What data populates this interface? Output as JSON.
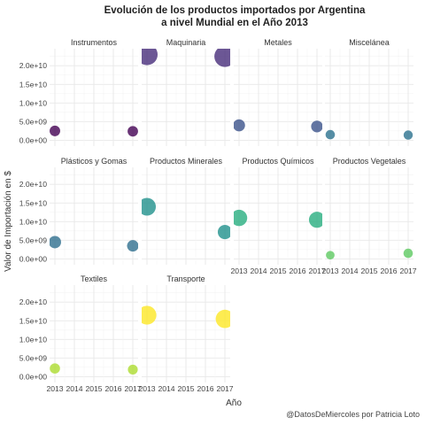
{
  "chart_data": {
    "type": "scatter",
    "title_lines": [
      "Evolución de los productos importados por Argentina",
      "a nivel Mundial en el Año 2013"
    ],
    "xlabel": "Año",
    "ylabel": "Valor de Importación en $",
    "caption": "@DatosDeMiercoles por Patricia Loto",
    "x_ticks": [
      2013,
      2014,
      2015,
      2016,
      2017
    ],
    "x_tick_labels": [
      "2013",
      "2014",
      "2015",
      "2016",
      "2017"
    ],
    "xlim": [
      2013,
      2017
    ],
    "y_ticks": [
      0,
      5000000000,
      10000000000,
      15000000000,
      20000000000
    ],
    "y_tick_labels": [
      "0.0e+00",
      "5.0e+09",
      "1.0e+10",
      "1.5e+10",
      "2.0e+10"
    ],
    "ylim": [
      0,
      23000000000
    ],
    "grid": true,
    "legend": "none",
    "facets": [
      {
        "name": "Instrumentos",
        "color": "#440154",
        "points": [
          {
            "x": 2013,
            "y": 2500000000
          },
          {
            "x": 2017,
            "y": 2400000000
          }
        ]
      },
      {
        "name": "Maquinaria",
        "color": "#472d7b",
        "points": [
          {
            "x": 2013,
            "y": 23000000000
          },
          {
            "x": 2017,
            "y": 22500000000
          }
        ]
      },
      {
        "name": "Metales",
        "color": "#3b528b",
        "points": [
          {
            "x": 2013,
            "y": 4000000000
          },
          {
            "x": 2017,
            "y": 3700000000
          }
        ]
      },
      {
        "name": "Miscelánea",
        "color": "#2c728e",
        "points": [
          {
            "x": 2013,
            "y": 1500000000
          },
          {
            "x": 2017,
            "y": 1400000000
          }
        ]
      },
      {
        "name": "Plásticos y Gomas",
        "color": "#2f6f8e",
        "points": [
          {
            "x": 2013,
            "y": 4500000000
          },
          {
            "x": 2017,
            "y": 3500000000
          }
        ]
      },
      {
        "name": "Productos Minerales",
        "color": "#21918c",
        "points": [
          {
            "x": 2013,
            "y": 14000000000
          },
          {
            "x": 2017,
            "y": 7200000000
          }
        ]
      },
      {
        "name": "Productos Químicos",
        "color": "#28ae80",
        "points": [
          {
            "x": 2013,
            "y": 11000000000
          },
          {
            "x": 2017,
            "y": 10500000000
          }
        ]
      },
      {
        "name": "Productos Vegetales",
        "color": "#5ec962",
        "points": [
          {
            "x": 2013,
            "y": 1000000000
          },
          {
            "x": 2017,
            "y": 1500000000
          }
        ]
      },
      {
        "name": "Textiles",
        "color": "#addc30",
        "points": [
          {
            "x": 2013,
            "y": 2200000000
          },
          {
            "x": 2017,
            "y": 1900000000
          }
        ]
      },
      {
        "name": "Transporte",
        "color": "#fde725",
        "points": [
          {
            "x": 2013,
            "y": 16500000000
          },
          {
            "x": 2017,
            "y": 15500000000
          }
        ]
      }
    ]
  }
}
